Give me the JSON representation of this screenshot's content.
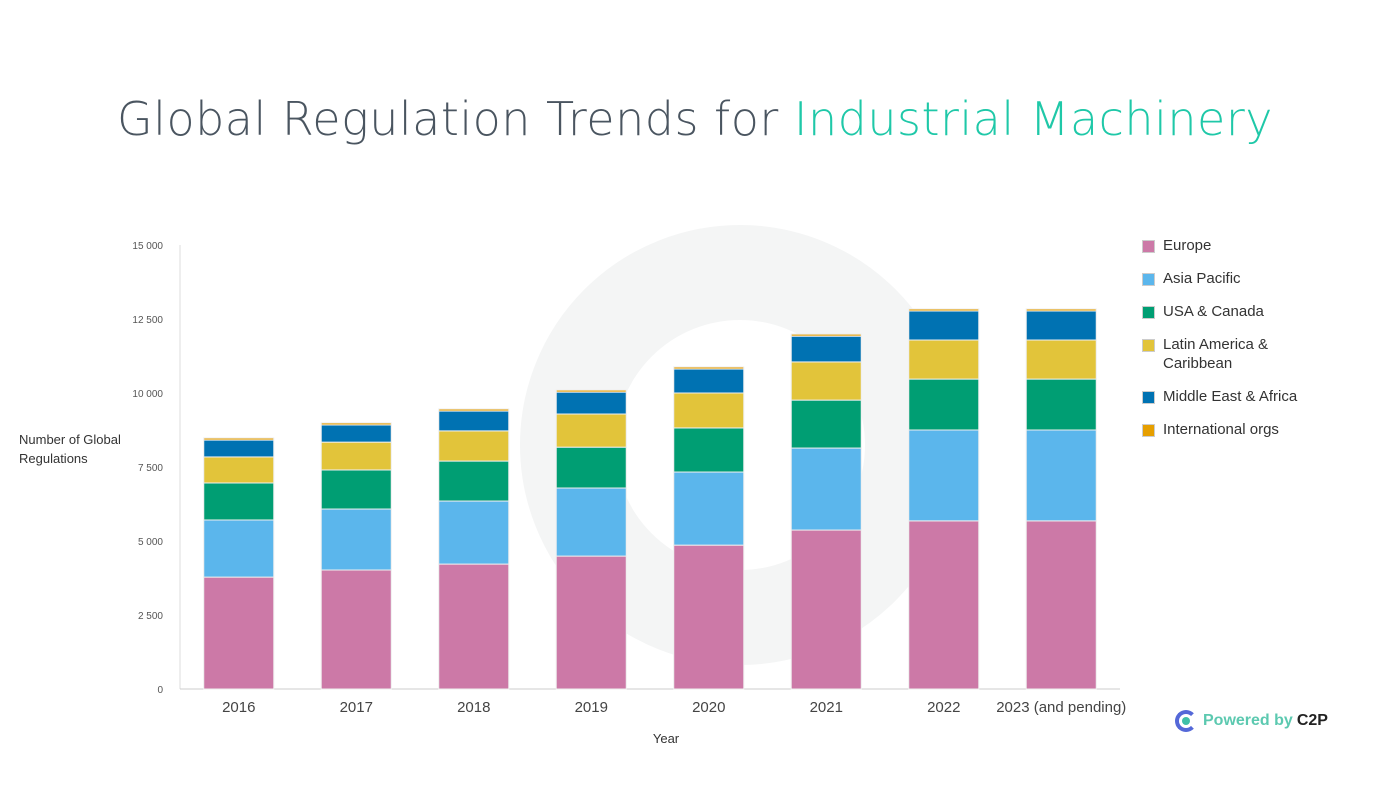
{
  "title": {
    "main": "Global Regulation Trends for ",
    "accent": "Industrial Machinery"
  },
  "chart_data": {
    "type": "bar",
    "stacked": true,
    "xlabel": "Year",
    "ylabel": "Number of Global Regulations",
    "ylim": [
      0,
      15000
    ],
    "yticks": [
      0,
      2500,
      5000,
      7500,
      10000,
      12500,
      15000
    ],
    "ytick_labels": [
      "0",
      "2 500",
      "5 000",
      "7 500",
      "10 000",
      "12 500",
      "15 000"
    ],
    "categories": [
      "2016",
      "2017",
      "2018",
      "2019",
      "2020",
      "2021",
      "2022",
      "2023 (and pending)"
    ],
    "series": [
      {
        "name": "Europe",
        "color": "#cc79a7",
        "values": [
          3780,
          4020,
          4220,
          4490,
          4860,
          5370,
          5680,
          5680
        ]
      },
      {
        "name": "Asia Pacific",
        "color": "#5bb6ec",
        "values": [
          1930,
          2060,
          2130,
          2300,
          2470,
          2770,
          3070,
          3070
        ]
      },
      {
        "name": "USA & Canada",
        "color": "#009e73",
        "values": [
          1250,
          1320,
          1350,
          1380,
          1490,
          1620,
          1720,
          1720
        ]
      },
      {
        "name": "Latin America & Caribbean",
        "color": "#e2c43a",
        "values": [
          880,
          940,
          1020,
          1120,
          1180,
          1290,
          1320,
          1320
        ]
      },
      {
        "name": "Middle East & Africa",
        "color": "#0072b2",
        "values": [
          570,
          580,
          670,
          740,
          810,
          870,
          980,
          980
        ]
      },
      {
        "name": "International orgs",
        "color": "#e69f00",
        "values": [
          70,
          70,
          70,
          70,
          70,
          70,
          70,
          70
        ]
      }
    ],
    "legend": "right"
  },
  "branding": {
    "powered": "Powered by ",
    "brand": "C2P"
  }
}
